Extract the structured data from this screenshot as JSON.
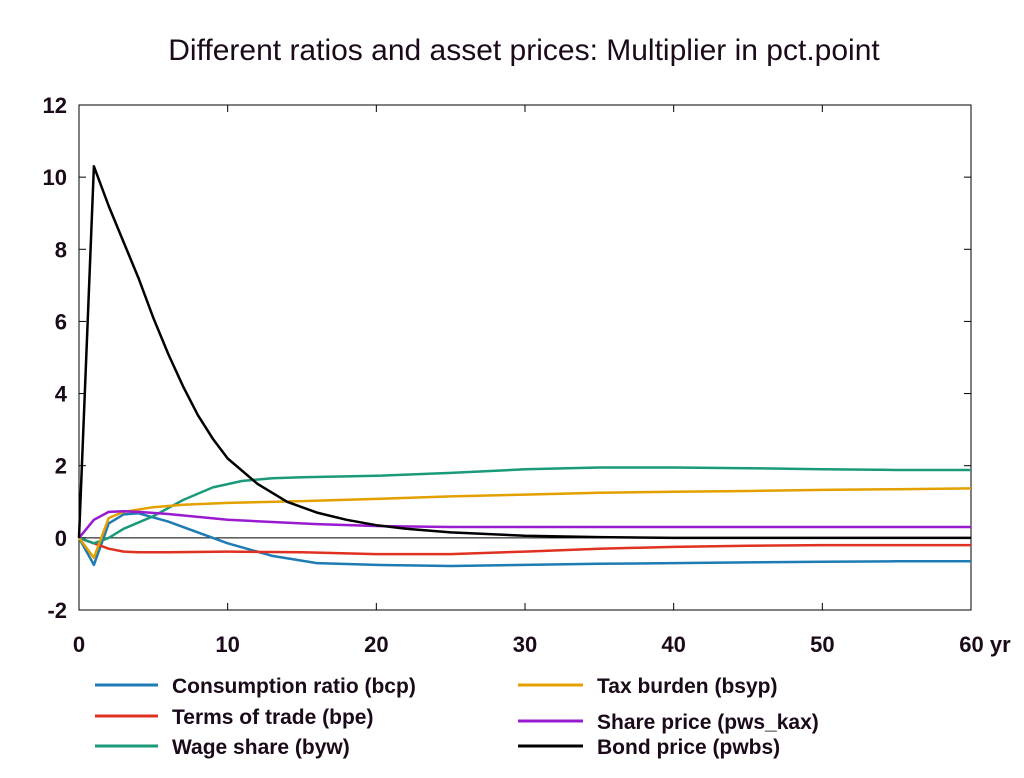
{
  "chart_data": {
    "type": "line",
    "title": "Different ratios and asset prices: Multiplier in pct.point",
    "xlim": [
      0,
      60
    ],
    "ylim": [
      -2,
      12
    ],
    "x_ticks": [
      "0",
      "10",
      "20",
      "30",
      "40",
      "50",
      "60 yr"
    ],
    "y_ticks": [
      "-2",
      "0",
      "2",
      "4",
      "6",
      "8",
      "10",
      "12"
    ],
    "grid": false,
    "legend_position": "bottom",
    "series": [
      {
        "name": "Consumption ratio (bcp)",
        "color": "#1f7bb4",
        "points": [
          [
            0,
            0
          ],
          [
            1,
            -0.75
          ],
          [
            2,
            0.4
          ],
          [
            3,
            0.65
          ],
          [
            4,
            0.68
          ],
          [
            6,
            0.45
          ],
          [
            8,
            0.15
          ],
          [
            10,
            -0.15
          ],
          [
            13,
            -0.5
          ],
          [
            16,
            -0.7
          ],
          [
            20,
            -0.75
          ],
          [
            25,
            -0.78
          ],
          [
            30,
            -0.75
          ],
          [
            35,
            -0.72
          ],
          [
            40,
            -0.7
          ],
          [
            45,
            -0.68
          ],
          [
            50,
            -0.66
          ],
          [
            55,
            -0.65
          ],
          [
            60,
            -0.65
          ]
        ]
      },
      {
        "name": "Terms of trade (bpe)",
        "color": "#e03020",
        "points": [
          [
            0,
            0
          ],
          [
            1,
            -0.15
          ],
          [
            2,
            -0.3
          ],
          [
            3,
            -0.38
          ],
          [
            4,
            -0.4
          ],
          [
            6,
            -0.4
          ],
          [
            10,
            -0.38
          ],
          [
            15,
            -0.4
          ],
          [
            20,
            -0.45
          ],
          [
            25,
            -0.45
          ],
          [
            30,
            -0.38
          ],
          [
            35,
            -0.3
          ],
          [
            40,
            -0.25
          ],
          [
            45,
            -0.22
          ],
          [
            50,
            -0.2
          ],
          [
            55,
            -0.2
          ],
          [
            60,
            -0.2
          ]
        ]
      },
      {
        "name": "Wage share (byw)",
        "color": "#1a9a7a",
        "points": [
          [
            0,
            0
          ],
          [
            1,
            -0.15
          ],
          [
            2,
            0.0
          ],
          [
            3,
            0.25
          ],
          [
            5,
            0.6
          ],
          [
            7,
            1.05
          ],
          [
            9,
            1.4
          ],
          [
            11,
            1.58
          ],
          [
            13,
            1.65
          ],
          [
            15,
            1.68
          ],
          [
            20,
            1.72
          ],
          [
            25,
            1.8
          ],
          [
            30,
            1.9
          ],
          [
            35,
            1.95
          ],
          [
            40,
            1.95
          ],
          [
            45,
            1.93
          ],
          [
            50,
            1.9
          ],
          [
            55,
            1.88
          ],
          [
            60,
            1.88
          ]
        ]
      },
      {
        "name": "Tax burden (bsyp)",
        "color": "#e3a000",
        "points": [
          [
            0,
            0
          ],
          [
            1,
            -0.55
          ],
          [
            2,
            0.55
          ],
          [
            3,
            0.72
          ],
          [
            5,
            0.85
          ],
          [
            7,
            0.92
          ],
          [
            10,
            0.97
          ],
          [
            15,
            1.02
          ],
          [
            20,
            1.08
          ],
          [
            25,
            1.15
          ],
          [
            30,
            1.2
          ],
          [
            35,
            1.25
          ],
          [
            40,
            1.28
          ],
          [
            45,
            1.3
          ],
          [
            50,
            1.33
          ],
          [
            55,
            1.35
          ],
          [
            60,
            1.37
          ]
        ]
      },
      {
        "name": "Share price (pws_kax)",
        "color": "#9a1ad0",
        "points": [
          [
            0,
            0
          ],
          [
            1,
            0.5
          ],
          [
            2,
            0.72
          ],
          [
            3,
            0.74
          ],
          [
            4,
            0.72
          ],
          [
            6,
            0.66
          ],
          [
            8,
            0.58
          ],
          [
            10,
            0.5
          ],
          [
            13,
            0.44
          ],
          [
            16,
            0.38
          ],
          [
            20,
            0.33
          ],
          [
            25,
            0.3
          ],
          [
            30,
            0.3
          ],
          [
            40,
            0.3
          ],
          [
            50,
            0.3
          ],
          [
            60,
            0.3
          ]
        ]
      },
      {
        "name": "Bond price (pwbs)",
        "color": "#000000",
        "points": [
          [
            0,
            0
          ],
          [
            1,
            10.3
          ],
          [
            2,
            9.2
          ],
          [
            3,
            8.2
          ],
          [
            4,
            7.2
          ],
          [
            5,
            6.1
          ],
          [
            6,
            5.1
          ],
          [
            7,
            4.2
          ],
          [
            8,
            3.4
          ],
          [
            9,
            2.75
          ],
          [
            10,
            2.2
          ],
          [
            12,
            1.5
          ],
          [
            14,
            1.0
          ],
          [
            16,
            0.7
          ],
          [
            18,
            0.5
          ],
          [
            20,
            0.35
          ],
          [
            22,
            0.25
          ],
          [
            25,
            0.15
          ],
          [
            30,
            0.06
          ],
          [
            35,
            0.02
          ],
          [
            40,
            0.0
          ],
          [
            50,
            0.0
          ],
          [
            60,
            0.0
          ]
        ]
      }
    ]
  }
}
